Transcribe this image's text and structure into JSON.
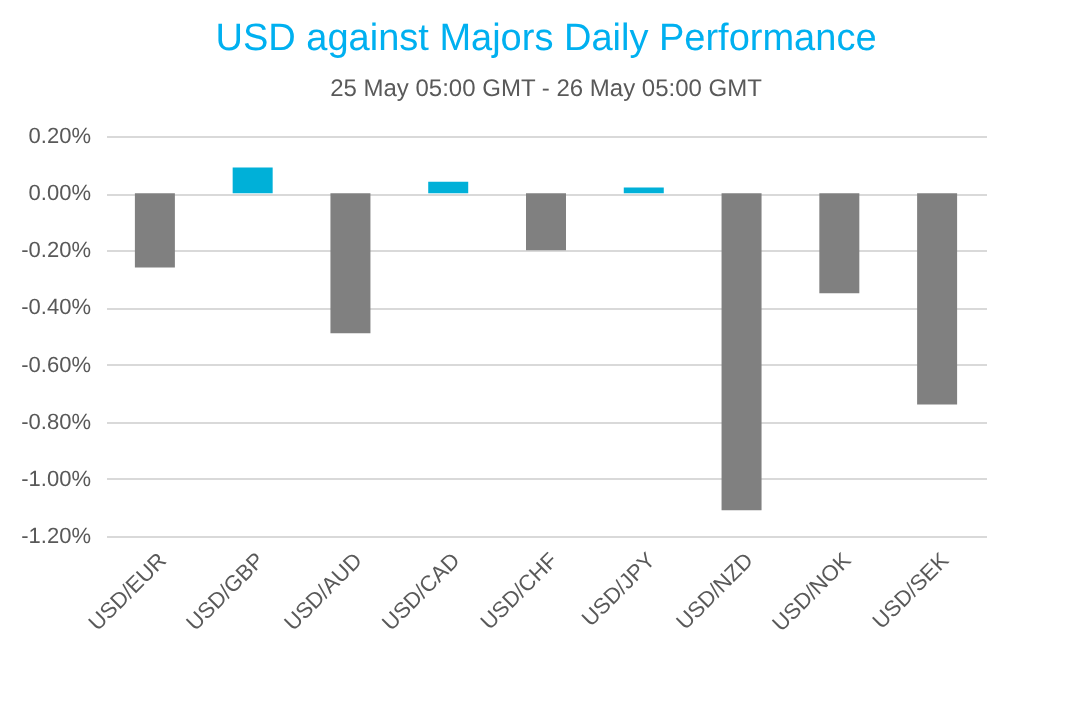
{
  "chart_data": {
    "type": "bar",
    "title": "USD against Majors Daily Performance",
    "subtitle": "25 May 05:00 GMT -  26 May  05:00 GMT",
    "categories": [
      "USD/EUR",
      "USD/GBP",
      "USD/AUD",
      "USD/CAD",
      "USD/CHF",
      "USD/JPY",
      "USD/NZD",
      "USD/NOK",
      "USD/SEK"
    ],
    "values": [
      -0.26,
      0.09,
      -0.49,
      0.04,
      -0.2,
      0.02,
      -1.11,
      -0.35,
      -0.74
    ],
    "colors": [
      "#808080",
      "#00b0d8",
      "#808080",
      "#00b0d8",
      "#808080",
      "#00b0d8",
      "#808080",
      "#808080",
      "#808080"
    ],
    "ylim": [
      -1.2,
      0.2
    ],
    "yticks": [
      {
        "value": 0.2,
        "label": "0.20%"
      },
      {
        "value": 0,
        "label": "0.00%"
      },
      {
        "value": -0.2,
        "label": "-0.20%"
      },
      {
        "value": -0.4,
        "label": "-0.40%"
      },
      {
        "value": -0.6,
        "label": "-0.60%"
      },
      {
        "value": -0.8,
        "label": "-0.80%"
      },
      {
        "value": -1.0,
        "label": "-1.00%"
      },
      {
        "value": -1.2,
        "label": "-1.20%"
      }
    ],
    "grid": "y"
  }
}
